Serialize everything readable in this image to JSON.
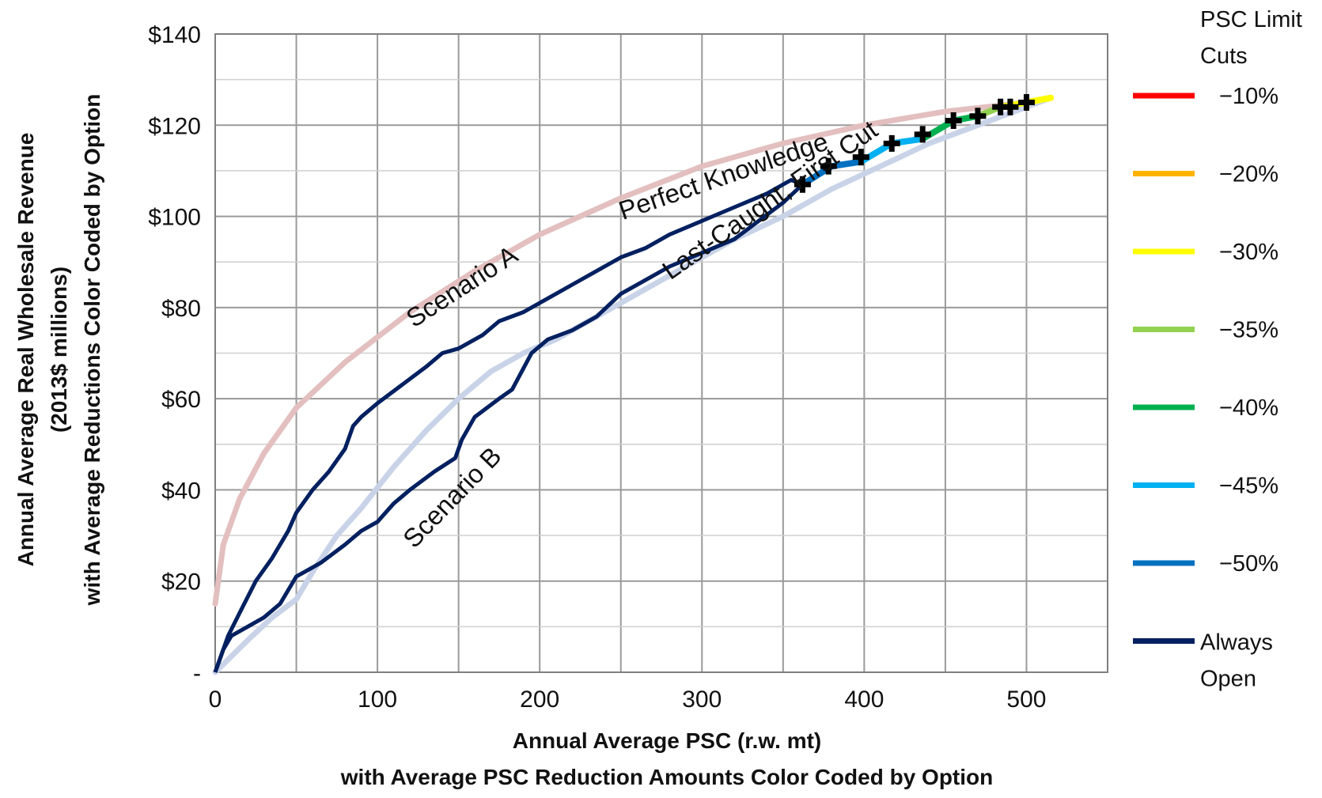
{
  "chart_data": {
    "type": "line",
    "xlabel": [
      "Annual Average PSC (r.w. mt)",
      "with Average PSC Reduction Amounts Color Coded  by Option"
    ],
    "ylabel": [
      "Annual Average Real Wholesale Revenue",
      "(2013$ millions)",
      "with Average Reductions Color Coded by Option"
    ],
    "xlim": [
      0,
      550
    ],
    "ylim": [
      0,
      140
    ],
    "x_ticks": [
      0,
      100,
      200,
      300,
      400,
      500
    ],
    "x_tick_labels": [
      "0",
      "100",
      "200",
      "300",
      "400",
      "500"
    ],
    "y_ticks": [
      0,
      20,
      40,
      60,
      80,
      100,
      120,
      140
    ],
    "y_tick_labels": [
      "-",
      "$20",
      "$40",
      "$60",
      "$80",
      "$100",
      "$120",
      "$140"
    ],
    "grid": true,
    "legend": {
      "title": [
        "PSC Limit",
        "Cuts"
      ],
      "placement": "right",
      "entries": [
        {
          "label": "−10%",
          "color": "#ff0000"
        },
        {
          "label": "−20%",
          "color": "#ffb300"
        },
        {
          "label": "−30%",
          "color": "#ffff00"
        },
        {
          "label": "−35%",
          "color": "#92d050"
        },
        {
          "label": "−40%",
          "color": "#00b050"
        },
        {
          "label": "−45%",
          "color": "#00b0f0"
        },
        {
          "label": "−50%",
          "color": "#0070c0"
        },
        {
          "label": "Always",
          "label2": "Open",
          "color": "#002060"
        }
      ]
    },
    "curves": {
      "perfect": {
        "color": "#e3bfbf",
        "points": [
          [
            0,
            15
          ],
          [
            5,
            28
          ],
          [
            15,
            38
          ],
          [
            30,
            48
          ],
          [
            50,
            58
          ],
          [
            80,
            68
          ],
          [
            120,
            79
          ],
          [
            160,
            88
          ],
          [
            200,
            96
          ],
          [
            250,
            104
          ],
          [
            300,
            111
          ],
          [
            350,
            116
          ],
          [
            400,
            120
          ],
          [
            450,
            123
          ],
          [
            500,
            125
          ],
          [
            515,
            126
          ]
        ]
      },
      "lastcaught": {
        "color": "#c9d3e8",
        "points": [
          [
            0,
            0
          ],
          [
            20,
            7
          ],
          [
            35,
            12
          ],
          [
            50,
            16
          ],
          [
            60,
            22
          ],
          [
            75,
            30
          ],
          [
            90,
            36
          ],
          [
            110,
            45
          ],
          [
            130,
            53
          ],
          [
            150,
            60
          ],
          [
            170,
            66
          ],
          [
            190,
            70
          ],
          [
            210,
            73
          ],
          [
            230,
            77
          ],
          [
            260,
            83
          ],
          [
            290,
            89
          ],
          [
            320,
            95
          ],
          [
            350,
            100
          ],
          [
            380,
            106
          ],
          [
            410,
            111
          ],
          [
            440,
            116
          ],
          [
            470,
            120
          ],
          [
            500,
            124
          ],
          [
            515,
            126
          ]
        ]
      },
      "scenarioA": {
        "color": "#002060",
        "points": [
          [
            0,
            0
          ],
          [
            8,
            8
          ],
          [
            15,
            13
          ],
          [
            25,
            20
          ],
          [
            35,
            25
          ],
          [
            45,
            31
          ],
          [
            50,
            35
          ],
          [
            60,
            40
          ],
          [
            70,
            44
          ],
          [
            80,
            49
          ],
          [
            85,
            54
          ],
          [
            90,
            56
          ],
          [
            100,
            59
          ],
          [
            115,
            63
          ],
          [
            130,
            67
          ],
          [
            140,
            70
          ],
          [
            150,
            71
          ],
          [
            165,
            74
          ],
          [
            175,
            77
          ],
          [
            190,
            79
          ],
          [
            205,
            82
          ],
          [
            220,
            85
          ],
          [
            235,
            88
          ],
          [
            250,
            91
          ],
          [
            265,
            93
          ],
          [
            280,
            96
          ],
          [
            300,
            99
          ],
          [
            320,
            102
          ],
          [
            340,
            105
          ],
          [
            355,
            108
          ],
          [
            362,
            107
          ]
        ]
      },
      "scenarioB": {
        "color": "#002060",
        "points": [
          [
            0,
            0
          ],
          [
            5,
            5
          ],
          [
            10,
            8
          ],
          [
            20,
            10
          ],
          [
            30,
            12
          ],
          [
            40,
            15
          ],
          [
            50,
            21
          ],
          [
            65,
            24
          ],
          [
            80,
            28
          ],
          [
            90,
            31
          ],
          [
            100,
            33
          ],
          [
            110,
            37
          ],
          [
            120,
            40
          ],
          [
            135,
            44
          ],
          [
            148,
            47
          ],
          [
            152,
            51
          ],
          [
            160,
            56
          ],
          [
            175,
            60
          ],
          [
            183,
            62
          ],
          [
            195,
            70
          ],
          [
            205,
            73
          ],
          [
            220,
            75
          ],
          [
            235,
            78
          ],
          [
            250,
            83
          ],
          [
            265,
            86
          ],
          [
            280,
            89
          ],
          [
            300,
            92
          ],
          [
            320,
            95
          ],
          [
            335,
            99
          ],
          [
            350,
            103
          ],
          [
            362,
            107
          ]
        ]
      },
      "cutSegments": [
        {
          "color": "#0070c0",
          "points": [
            [
              362,
              107
            ],
            [
              380,
              111
            ],
            [
              398,
              112
            ]
          ]
        },
        {
          "color": "#00b0f0",
          "points": [
            [
              398,
              112
            ],
            [
              417,
              116
            ],
            [
              436,
              117
            ]
          ]
        },
        {
          "color": "#00b050",
          "points": [
            [
              436,
              117
            ],
            [
              455,
              121
            ],
            [
              470,
              122
            ]
          ]
        },
        {
          "color": "#92d050",
          "points": [
            [
              470,
              122
            ],
            [
              484,
              124
            ]
          ]
        },
        {
          "color": "#ffff00",
          "points": [
            [
              484,
              124
            ],
            [
              500,
              125
            ],
            [
              515,
              126
            ]
          ]
        }
      ],
      "markers": [
        [
          362,
          107
        ],
        [
          378,
          111
        ],
        [
          398,
          113
        ],
        [
          417,
          116
        ],
        [
          436,
          118
        ],
        [
          455,
          121
        ],
        [
          470,
          122
        ],
        [
          484,
          124
        ],
        [
          490,
          124
        ],
        [
          500,
          125
        ]
      ]
    },
    "annotations": [
      {
        "text": "Perfect Knowledge",
        "x": 315,
        "y": 107,
        "angle": -19
      },
      {
        "text": "Scenario A",
        "x": 155,
        "y": 83,
        "angle": -33
      },
      {
        "text": "Last-Caught, First Cut",
        "x": 345,
        "y": 102,
        "angle": -35
      },
      {
        "text": "Scenario B",
        "x": 150,
        "y": 37,
        "angle": -46
      }
    ]
  }
}
